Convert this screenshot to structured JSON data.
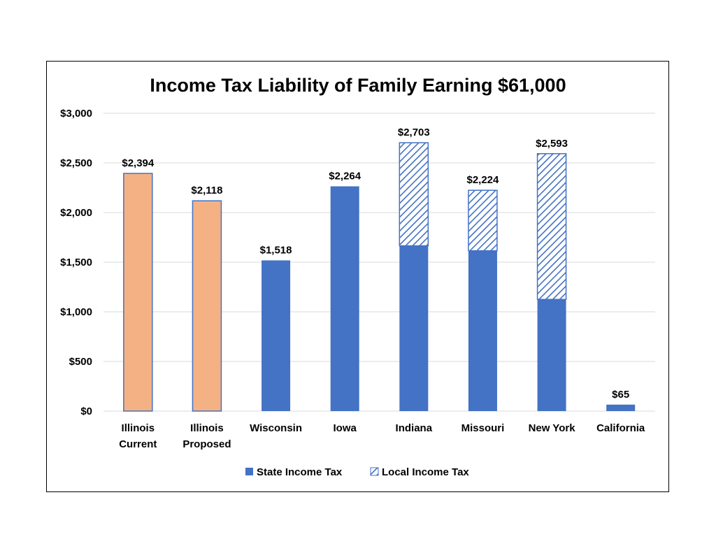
{
  "chart_data": {
    "type": "bar",
    "stacked": true,
    "title": "Income Tax Liability of Family Earning $61,000",
    "xlabel": "",
    "ylabel": "",
    "ylim": [
      0,
      3000
    ],
    "yticks": [
      0,
      500,
      1000,
      1500,
      2000,
      2500,
      3000
    ],
    "ytick_labels": [
      "$0",
      "$500",
      "$1,000",
      "$1,500",
      "$2,000",
      "$2,500",
      "$3,000"
    ],
    "grid": true,
    "legend_position": "bottom",
    "categories": [
      [
        "Illinois",
        "Current"
      ],
      [
        "Illinois",
        "Proposed"
      ],
      [
        "Wisconsin"
      ],
      [
        "Iowa"
      ],
      [
        "Indiana"
      ],
      [
        "Missouri"
      ],
      [
        "New York"
      ],
      [
        "California"
      ]
    ],
    "series": [
      {
        "name": "State Income Tax",
        "values": [
          2394,
          2118,
          1518,
          2264,
          1665,
          1615,
          1125,
          65
        ],
        "color": "#4472c4",
        "pattern": "solid"
      },
      {
        "name": "Local Income Tax",
        "values": [
          0,
          0,
          0,
          0,
          1038,
          609,
          1468,
          0
        ],
        "color": "#4472c4",
        "pattern": "hatched"
      }
    ],
    "bar_colors_override": {
      "0": "#f4b183",
      "1": "#f4b183"
    },
    "totals": [
      2394,
      2118,
      1518,
      2264,
      2703,
      2224,
      2593,
      65
    ],
    "total_labels": [
      "$2,394",
      "$2,118",
      "$1,518",
      "$2,264",
      "$2,703",
      "$2,224",
      "$2,593",
      "$65"
    ]
  }
}
